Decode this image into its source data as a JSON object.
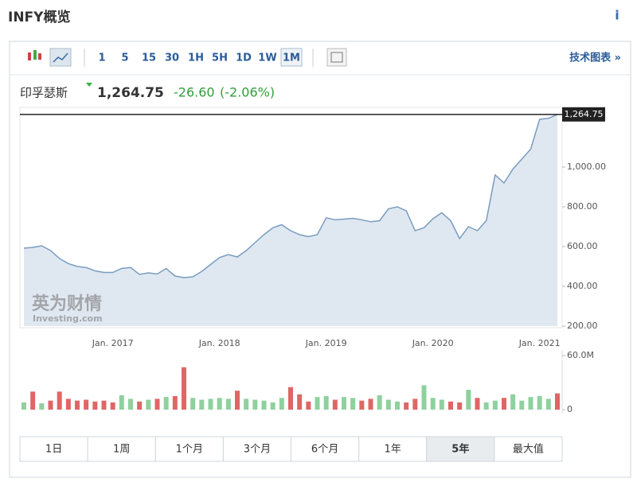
{
  "header": {
    "title": "INFY概览",
    "info": "i"
  },
  "toolbar": {
    "intervals": [
      "1",
      "5",
      "15",
      "30",
      "1H",
      "5H",
      "1D",
      "1W",
      "1M"
    ],
    "selected": 8,
    "link": "技术图表 »"
  },
  "quote": {
    "name": "印孚瑟斯",
    "price": "1,264.75",
    "change": "-26.60",
    "change_pct": "(-2.06%)"
  },
  "chart_data": [
    {
      "type": "area",
      "color": "#7a9cc0",
      "fill": "#dfe8f1",
      "watermark": "英为财情",
      "watermark_sub": "Investing.com",
      "categories": [
        null,
        null,
        null,
        null,
        null,
        null,
        null,
        null,
        null,
        null,
        "Jan. 2017",
        null,
        null,
        null,
        null,
        null,
        null,
        null,
        null,
        null,
        null,
        null,
        "Jan. 2018",
        null,
        null,
        null,
        null,
        null,
        null,
        null,
        null,
        null,
        null,
        null,
        "Jan. 2019",
        null,
        null,
        null,
        null,
        null,
        null,
        null,
        null,
        null,
        null,
        null,
        "Jan. 2020",
        null,
        null,
        null,
        null,
        null,
        null,
        null,
        null,
        null,
        null,
        null,
        "Jan. 2021",
        null,
        null
      ],
      "values": [
        592,
        596,
        604,
        580,
        540,
        515,
        500,
        495,
        478,
        470,
        470,
        490,
        495,
        460,
        468,
        462,
        490,
        452,
        444,
        448,
        475,
        510,
        545,
        560,
        548,
        580,
        620,
        660,
        695,
        710,
        680,
        660,
        650,
        660,
        745,
        735,
        738,
        742,
        735,
        725,
        730,
        790,
        800,
        780,
        680,
        695,
        740,
        770,
        730,
        640,
        700,
        680,
        730,
        960,
        920,
        990,
        1040,
        1090,
        1240,
        1245,
        1264.75
      ],
      "ylim": [
        200,
        1300
      ],
      "yticks": [
        {
          "value": 200,
          "label": "200.00"
        },
        {
          "value": 400,
          "label": "400.00"
        },
        {
          "value": 600,
          "label": "600.00"
        },
        {
          "value": 800,
          "label": "800.00"
        },
        {
          "value": 1000,
          "label": "1,000.00"
        }
      ]
    },
    {
      "type": "bar",
      "values": [
        8,
        20,
        7,
        10,
        20,
        12,
        10,
        11,
        9,
        10,
        8,
        16,
        12,
        9,
        11,
        12,
        14,
        15,
        47,
        13,
        11,
        12,
        13,
        12,
        21,
        12,
        11,
        10,
        8,
        13,
        25,
        17,
        9,
        14,
        15,
        11,
        14,
        13,
        10,
        12,
        16,
        11,
        9,
        8,
        12,
        27,
        13,
        11,
        9,
        8,
        22,
        13,
        8,
        10,
        13,
        17,
        10,
        14,
        15,
        12,
        18
      ],
      "colors": [
        "#8fd19e",
        "#e06666",
        "#8fd19e",
        "#e06666",
        "#e06666",
        "#e06666",
        "#e06666",
        "#e06666",
        "#e06666",
        "#e06666",
        "#e06666",
        "#8fd19e",
        "#8fd19e",
        "#e06666",
        "#8fd19e",
        "#e06666",
        "#8fd19e",
        "#e06666",
        "#e06666",
        "#8fd19e",
        "#8fd19e",
        "#8fd19e",
        "#8fd19e",
        "#8fd19e",
        "#e06666",
        "#8fd19e",
        "#8fd19e",
        "#8fd19e",
        "#8fd19e",
        "#8fd19e",
        "#e06666",
        "#e06666",
        "#e06666",
        "#8fd19e",
        "#8fd19e",
        "#e06666",
        "#8fd19e",
        "#8fd19e",
        "#e06666",
        "#e06666",
        "#8fd19e",
        "#8fd19e",
        "#8fd19e",
        "#e06666",
        "#e06666",
        "#8fd19e",
        "#8fd19e",
        "#8fd19e",
        "#e06666",
        "#e06666",
        "#8fd19e",
        "#e06666",
        "#8fd19e",
        "#8fd19e",
        "#e06666",
        "#8fd19e",
        "#8fd19e",
        "#8fd19e",
        "#8fd19e",
        "#8fd19e",
        "#e06666"
      ],
      "ylim": [
        0,
        60
      ],
      "yticks": [
        0,
        {
          "value": 60,
          "label": "60.0M"
        }
      ]
    }
  ],
  "ranges": {
    "buttons": [
      "1日",
      "1周",
      "1个月",
      "3个月",
      "6个月",
      "1年",
      "5年",
      "最大值"
    ],
    "selected": 6
  }
}
